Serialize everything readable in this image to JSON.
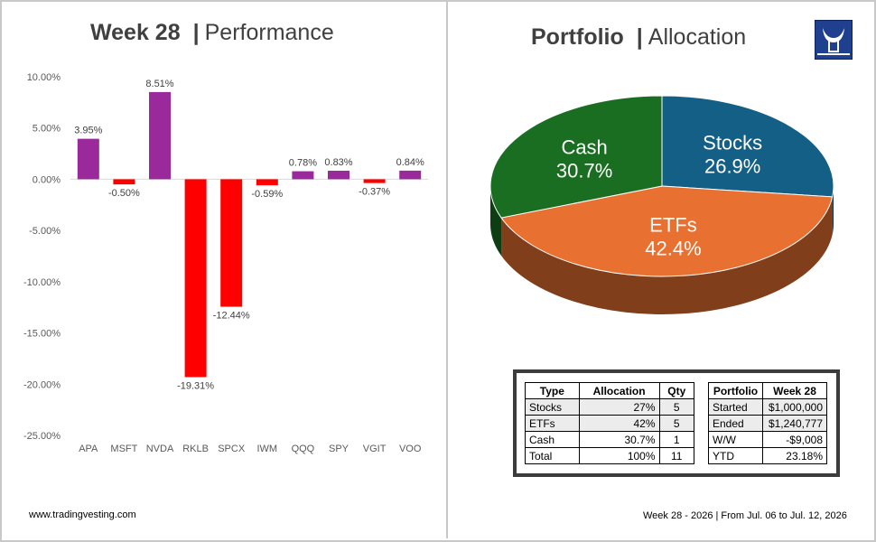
{
  "perf_panel": {
    "title_bold": "Week 28",
    "separator": "|",
    "title_sub": "Performance"
  },
  "alloc_panel": {
    "title_bold": "Portfolio",
    "separator": "|",
    "title_sub": "Allocation"
  },
  "chart_data": [
    {
      "type": "bar",
      "categories": [
        "APA",
        "MSFT",
        "NVDA",
        "RKLB",
        "SPCX",
        "IWM",
        "QQQ",
        "SPY",
        "VGIT",
        "VOO"
      ],
      "values": [
        3.95,
        -0.5,
        8.51,
        -19.31,
        -12.44,
        -0.59,
        0.78,
        0.83,
        -0.37,
        0.84
      ],
      "data_labels": [
        "3.95%",
        "-0.50%",
        "8.51%",
        "-19.31%",
        "-12.44%",
        "-0.59%",
        "0.78%",
        "0.83%",
        "-0.37%",
        "0.84%"
      ],
      "ylim": [
        -25,
        10
      ],
      "yticks": [
        "10.00%",
        "5.00%",
        "0.00%",
        "-5.00%",
        "-10.00%",
        "-15.00%",
        "-20.00%",
        "-25.00%"
      ],
      "positive_color": "#9a2a9c",
      "negative_color": "#ff0000",
      "grid": false
    },
    {
      "type": "pie",
      "labels": [
        "Stocks",
        "ETFs",
        "Cash"
      ],
      "values": [
        26.9,
        42.4,
        30.7
      ],
      "value_labels": [
        "26.9%",
        "42.4%",
        "30.7%"
      ],
      "colors": [
        "#135f86",
        "#e87030",
        "#1a6e22"
      ],
      "style": "3d"
    }
  ],
  "allocation_table": {
    "headers": [
      "Type",
      "Allocation",
      "Qty"
    ],
    "rows": [
      [
        "Stocks",
        "27%",
        "5"
      ],
      [
        "ETFs",
        "42%",
        "5"
      ],
      [
        "Cash",
        "30.7%",
        "1"
      ],
      [
        "Total",
        "100%",
        "11"
      ]
    ]
  },
  "portfolio_table": {
    "headers": [
      "Portfolio",
      "Week 28"
    ],
    "rows": [
      [
        "Started",
        "$1,000,000"
      ],
      [
        "Ended",
        "$1,240,777"
      ],
      [
        "W/W",
        "-$9,008"
      ],
      [
        "YTD",
        "23.18%"
      ]
    ]
  },
  "footer": {
    "site": "www.tradingvesting.com",
    "dates": "Week 28 - 2026 | From Jul. 06  to Jul. 12, 2026"
  },
  "colors": {
    "border": "#c8c8c8",
    "title": "#404040",
    "logo_bg": "#1f3f8f"
  },
  "logo_icon": "bull-icon"
}
